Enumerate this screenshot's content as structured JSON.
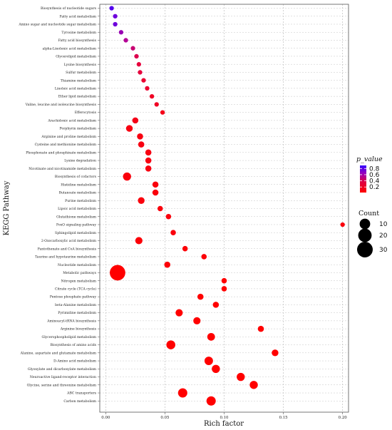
{
  "chart_data": {
    "type": "scatter",
    "xlabel": "Rich factor",
    "ylabel": "KEGG Pathway",
    "xlim": [
      -0.005,
      0.205
    ],
    "xticks": [
      "0.00",
      "0.05",
      "0.10",
      "0.15",
      "0.20"
    ],
    "xtick_values": [
      0,
      0.05,
      0.1,
      0.15,
      0.2
    ],
    "grid": true,
    "color_legend": {
      "title": "p_value",
      "ticks": [
        "0.8",
        "0.6",
        "0.4",
        "0.2"
      ],
      "tick_values": [
        0.8,
        0.6,
        0.4,
        0.2
      ],
      "low_color": "#ff0000",
      "high_color": "#3300ff"
    },
    "size_legend": {
      "title": "Count",
      "labels": [
        "10",
        "20",
        "30"
      ],
      "values": [
        10,
        20,
        30
      ]
    },
    "points": [
      {
        "pathway": "Biosynthesis of nucleotide sugars",
        "rich_factor": 0.005,
        "count": 1,
        "p_value": 0.85
      },
      {
        "pathway": "Fatty acid metabolism",
        "rich_factor": 0.008,
        "count": 1,
        "p_value": 0.8
      },
      {
        "pathway": "Amino sugar and nucleotide sugar metabolism",
        "rich_factor": 0.008,
        "count": 1,
        "p_value": 0.8
      },
      {
        "pathway": "Tyrosine metabolism",
        "rich_factor": 0.013,
        "count": 1,
        "p_value": 0.65
      },
      {
        "pathway": "Fatty acid biosynthesis",
        "rich_factor": 0.017,
        "count": 1,
        "p_value": 0.55
      },
      {
        "pathway": "alpha-Linolenic acid metabolism",
        "rich_factor": 0.023,
        "count": 1,
        "p_value": 0.45
      },
      {
        "pathway": "Glycerolipid metabolism",
        "rich_factor": 0.026,
        "count": 1,
        "p_value": 0.35
      },
      {
        "pathway": "Lysine biosynthesis",
        "rich_factor": 0.028,
        "count": 1,
        "p_value": 0.3
      },
      {
        "pathway": "Sulfur metabolism",
        "rich_factor": 0.029,
        "count": 1,
        "p_value": 0.3
      },
      {
        "pathway": "Thiamine metabolism",
        "rich_factor": 0.032,
        "count": 1,
        "p_value": 0.25
      },
      {
        "pathway": "Linoleic acid metabolism",
        "rich_factor": 0.035,
        "count": 1,
        "p_value": 0.25
      },
      {
        "pathway": "Ether lipid metabolism",
        "rich_factor": 0.039,
        "count": 1,
        "p_value": 0.2
      },
      {
        "pathway": "Valine, leucine and isoleucine biosynthesis",
        "rich_factor": 0.043,
        "count": 1,
        "p_value": 0.2
      },
      {
        "pathway": "Efferocytosis",
        "rich_factor": 0.048,
        "count": 1,
        "p_value": 0.15
      },
      {
        "pathway": "Arachidonic acid metabolism",
        "rich_factor": 0.025,
        "count": 3,
        "p_value": 0.15
      },
      {
        "pathway": "Porphyrin metabolism",
        "rich_factor": 0.02,
        "count": 4,
        "p_value": 0.12
      },
      {
        "pathway": "Arginine and proline metabolism",
        "rich_factor": 0.029,
        "count": 3,
        "p_value": 0.12
      },
      {
        "pathway": "Cysteine and methionine metabolism",
        "rich_factor": 0.03,
        "count": 3,
        "p_value": 0.12
      },
      {
        "pathway": "Phosphonate and phosphinate metabolism",
        "rich_factor": 0.036,
        "count": 3,
        "p_value": 0.12
      },
      {
        "pathway": "Lysine degradation",
        "rich_factor": 0.036,
        "count": 3,
        "p_value": 0.12
      },
      {
        "pathway": "Nicotinate and nicotinamide metabolism",
        "rich_factor": 0.036,
        "count": 3,
        "p_value": 0.12
      },
      {
        "pathway": "Biosynthesis of cofactors",
        "rich_factor": 0.018,
        "count": 7,
        "p_value": 0.1
      },
      {
        "pathway": "Histidine metabolism",
        "rich_factor": 0.042,
        "count": 3,
        "p_value": 0.1
      },
      {
        "pathway": "Butanoate metabolism",
        "rich_factor": 0.042,
        "count": 3,
        "p_value": 0.1
      },
      {
        "pathway": "Purine metabolism",
        "rich_factor": 0.03,
        "count": 4,
        "p_value": 0.1
      },
      {
        "pathway": "Lipoic acid metabolism",
        "rich_factor": 0.046,
        "count": 2,
        "p_value": 0.1
      },
      {
        "pathway": "Glutathione metabolism",
        "rich_factor": 0.053,
        "count": 2,
        "p_value": 0.1
      },
      {
        "pathway": "FoxO signaling pathway",
        "rich_factor": 0.2,
        "count": 1,
        "p_value": 0.1
      },
      {
        "pathway": "Sphingolipid metabolism",
        "rich_factor": 0.057,
        "count": 2,
        "p_value": 0.1
      },
      {
        "pathway": "2-Oxocarboxylic acid metabolism",
        "rich_factor": 0.028,
        "count": 5,
        "p_value": 0.08
      },
      {
        "pathway": "Pantothenate and CoA biosynthesis",
        "rich_factor": 0.067,
        "count": 2,
        "p_value": 0.08
      },
      {
        "pathway": "Taurine and hypotaurine metabolism",
        "rich_factor": 0.083,
        "count": 2,
        "p_value": 0.08
      },
      {
        "pathway": "Nucleotide metabolism",
        "rich_factor": 0.052,
        "count": 3,
        "p_value": 0.08
      },
      {
        "pathway": "Metabolic pathways",
        "rich_factor": 0.01,
        "count": 36,
        "p_value": 0.05
      },
      {
        "pathway": "Nitrogen metabolism",
        "rich_factor": 0.1,
        "count": 2,
        "p_value": 0.05
      },
      {
        "pathway": "Citrate cycle (TCA cycle)",
        "rich_factor": 0.1,
        "count": 2,
        "p_value": 0.05
      },
      {
        "pathway": "Pentose phosphate pathway",
        "rich_factor": 0.08,
        "count": 3,
        "p_value": 0.05
      },
      {
        "pathway": "beta-Alanine metabolism",
        "rich_factor": 0.093,
        "count": 3,
        "p_value": 0.05
      },
      {
        "pathway": "Pyrimidine metabolism",
        "rich_factor": 0.062,
        "count": 5,
        "p_value": 0.05
      },
      {
        "pathway": "Aminoacyl-tRNA biosynthesis",
        "rich_factor": 0.077,
        "count": 5,
        "p_value": 0.05
      },
      {
        "pathway": "Arginine biosynthesis",
        "rich_factor": 0.131,
        "count": 3,
        "p_value": 0.04
      },
      {
        "pathway": "Glycerophospholipid metabolism",
        "rich_factor": 0.089,
        "count": 6,
        "p_value": 0.04
      },
      {
        "pathway": "Biosynthesis of amino acids",
        "rich_factor": 0.055,
        "count": 9,
        "p_value": 0.04
      },
      {
        "pathway": "Alanine, aspartate and glutamate metabolism",
        "rich_factor": 0.143,
        "count": 4,
        "p_value": 0.04
      },
      {
        "pathway": "D-Amino acid metabolism",
        "rich_factor": 0.087,
        "count": 8,
        "p_value": 0.03
      },
      {
        "pathway": "Glyoxylate and dicarboxylate metabolism",
        "rich_factor": 0.093,
        "count": 7,
        "p_value": 0.03
      },
      {
        "pathway": "Neuroactive ligand-receptor interaction",
        "rich_factor": 0.114,
        "count": 7,
        "p_value": 0.03
      },
      {
        "pathway": "Glycine, serine and threonine metabolism",
        "rich_factor": 0.125,
        "count": 7,
        "p_value": 0.03
      },
      {
        "pathway": "ABC transporters",
        "rich_factor": 0.065,
        "count": 10,
        "p_value": 0.02
      },
      {
        "pathway": "Carbon metabolism",
        "rich_factor": 0.089,
        "count": 10,
        "p_value": 0.02
      }
    ]
  }
}
